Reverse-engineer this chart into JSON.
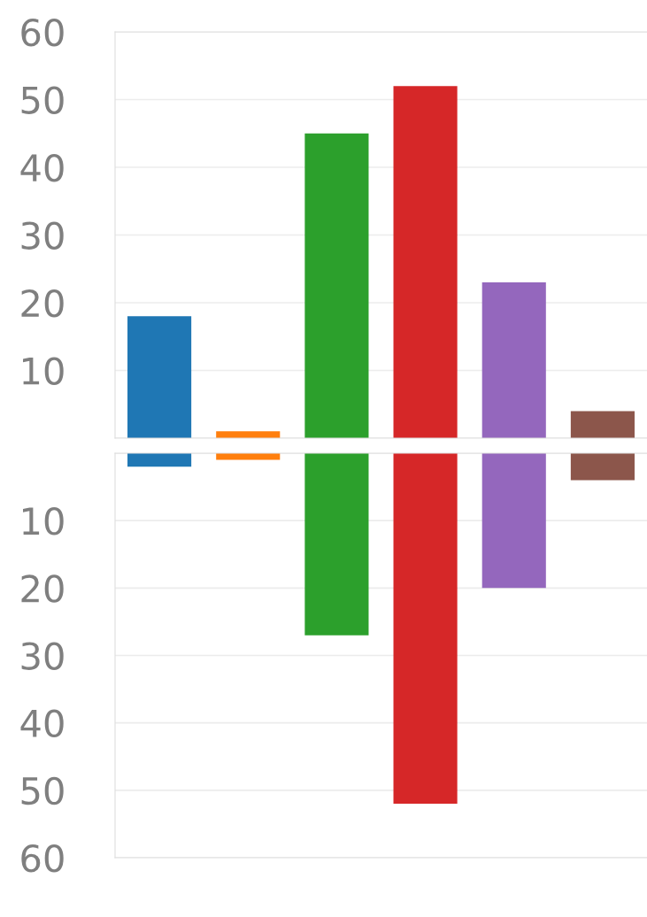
{
  "chart_data": [
    {
      "type": "bar",
      "categories": [
        null,
        null,
        null,
        null,
        null,
        null
      ],
      "values": [
        18,
        1,
        45,
        52,
        23,
        4
      ],
      "colors": [
        "#1f77b4",
        "#ff7f0e",
        "#2ca02c",
        "#d62728",
        "#9467bd",
        "#8c564b"
      ],
      "ylim": [
        0,
        60
      ],
      "yticks": [
        {
          "value": 0,
          "label": null
        },
        10,
        20,
        30,
        40,
        50,
        60
      ],
      "grid": "y",
      "tick_labels": "y"
    },
    {
      "type": "bar",
      "categories": [
        null,
        null,
        null,
        null,
        null,
        null
      ],
      "values": [
        2,
        1,
        27,
        52,
        20,
        4
      ],
      "colors": [
        "#1f77b4",
        "#ff7f0e",
        "#2ca02c",
        "#d62728",
        "#9467bd",
        "#8c564b"
      ],
      "ylim": [
        60,
        0
      ],
      "yticks": [
        {
          "value": 0,
          "label": null
        },
        10,
        20,
        30,
        40,
        50,
        60
      ],
      "grid": "y",
      "tick_labels": "y"
    }
  ]
}
